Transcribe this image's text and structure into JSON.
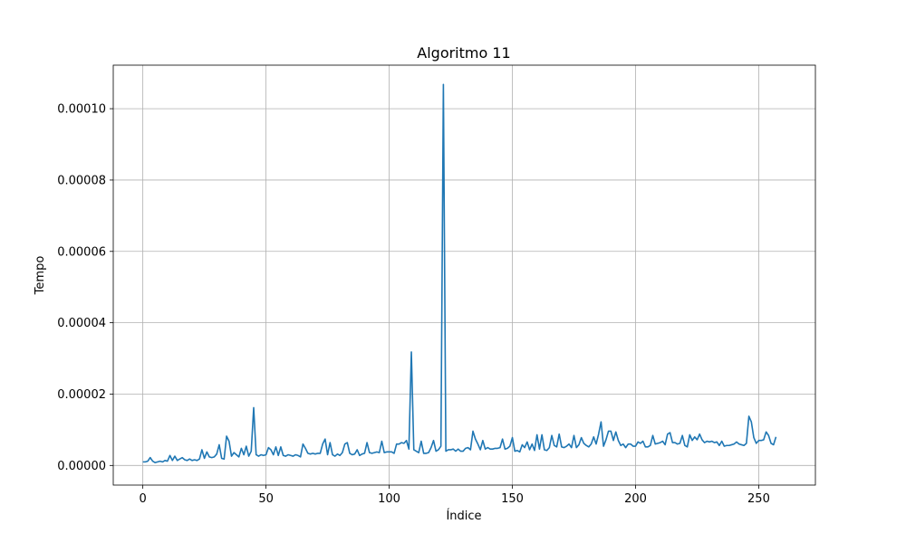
{
  "chart_data": {
    "type": "line",
    "title": "Algoritmo 11",
    "xlabel": "Índice",
    "ylabel": "Tempo",
    "xlim": [
      -12,
      273
    ],
    "ylim": [
      -5.5e-06,
      0.0001122
    ],
    "xticks": [
      0,
      50,
      100,
      150,
      200,
      250
    ],
    "xtick_labels": [
      "0",
      "50",
      "100",
      "150",
      "200",
      "250"
    ],
    "yticks": [
      0,
      2e-05,
      4e-05,
      6e-05,
      8e-05,
      0.0001
    ],
    "ytick_labels": [
      "0.00000",
      "0.00002",
      "0.00004",
      "0.00006",
      "0.00008",
      "0.00010"
    ],
    "grid": true,
    "series": [
      {
        "color": "#1f77b4",
        "x_start": 0,
        "values": [
          1e-06,
          1e-06,
          1.2e-06,
          2.2e-06,
          1.2e-06,
          8e-07,
          1e-06,
          1.2e-06,
          1e-06,
          1.4e-06,
          1.2e-06,
          2.8e-06,
          1.4e-06,
          2.6e-06,
          1.4e-06,
          1.8e-06,
          2.2e-06,
          1.6e-06,
          1.4e-06,
          1.8e-06,
          1.4e-06,
          1.6e-06,
          1.4e-06,
          1.8e-06,
          4.4e-06,
          2e-06,
          3.8e-06,
          2.4e-06,
          2.2e-06,
          2.4e-06,
          3.2e-06,
          5.8e-06,
          2e-06,
          1.8e-06,
          8.2e-06,
          6.8e-06,
          2.6e-06,
          3.6e-06,
          3e-06,
          2.4e-06,
          4.8e-06,
          3e-06,
          5.4e-06,
          2.6e-06,
          4e-06,
          1.62e-05,
          3e-06,
          2.6e-06,
          3e-06,
          2.8e-06,
          3e-06,
          5e-06,
          4.4e-06,
          3e-06,
          5.2e-06,
          2.8e-06,
          5.2e-06,
          2.8e-06,
          2.6e-06,
          3e-06,
          2.8e-06,
          2.6e-06,
          3e-06,
          2.8e-06,
          2.4e-06,
          6e-06,
          4.8e-06,
          3.4e-06,
          3.2e-06,
          3.4e-06,
          3.2e-06,
          3.4e-06,
          3.4e-06,
          6e-06,
          7.4e-06,
          3e-06,
          6.4e-06,
          3e-06,
          2.6e-06,
          3.2e-06,
          2.8e-06,
          3.6e-06,
          6e-06,
          6.4e-06,
          3.4e-06,
          3e-06,
          3.2e-06,
          4.4e-06,
          2.8e-06,
          3.2e-06,
          3.4e-06,
          6.4e-06,
          3.6e-06,
          3.4e-06,
          3.6e-06,
          3.8e-06,
          3.6e-06,
          6.8e-06,
          3.6e-06,
          3.8e-06,
          3.8e-06,
          3.8e-06,
          3.4e-06,
          6e-06,
          6e-06,
          6.4e-06,
          6.2e-06,
          7e-06,
          4.6e-06,
          3.18e-05,
          4.4e-06,
          4e-06,
          3.6e-06,
          6.8e-06,
          3.4e-06,
          3.4e-06,
          3.6e-06,
          5e-06,
          7e-06,
          4e-06,
          4.4e-06,
          5.4e-06,
          0.0001068,
          4e-06,
          4.4e-06,
          4.4e-06,
          4.6e-06,
          4e-06,
          4.6e-06,
          4e-06,
          4e-06,
          4.8e-06,
          5e-06,
          4.4e-06,
          9.6e-06,
          7.4e-06,
          6e-06,
          4.4e-06,
          7e-06,
          4.6e-06,
          5e-06,
          4.6e-06,
          4.6e-06,
          4.8e-06,
          4.8e-06,
          5e-06,
          7.4e-06,
          4.6e-06,
          4.8e-06,
          5.4e-06,
          7.8e-06,
          4e-06,
          4.2e-06,
          3.8e-06,
          5.8e-06,
          5e-06,
          6.6e-06,
          4.4e-06,
          6e-06,
          4.2e-06,
          8.6e-06,
          4.6e-06,
          8.6e-06,
          4.4e-06,
          4.2e-06,
          5e-06,
          8.4e-06,
          5.6e-06,
          5.2e-06,
          8.8e-06,
          5.2e-06,
          5e-06,
          5.4e-06,
          6e-06,
          5e-06,
          8.4e-06,
          5e-06,
          5.8e-06,
          7.8e-06,
          6.2e-06,
          5.6e-06,
          5.2e-06,
          6e-06,
          8e-06,
          6e-06,
          8.8e-06,
          1.22e-05,
          5.4e-06,
          7.2e-06,
          9.6e-06,
          9.6e-06,
          7e-06,
          9.4e-06,
          7e-06,
          5.6e-06,
          6e-06,
          5e-06,
          6e-06,
          6e-06,
          5.4e-06,
          5.4e-06,
          6.6e-06,
          6.2e-06,
          6.8e-06,
          5.2e-06,
          5.2e-06,
          5.6e-06,
          8.4e-06,
          6e-06,
          6.2e-06,
          6.4e-06,
          6.8e-06,
          5.8e-06,
          8.8e-06,
          9.2e-06,
          6.4e-06,
          6.4e-06,
          6e-06,
          6.2e-06,
          8.4e-06,
          5.6e-06,
          5.2e-06,
          8.6e-06,
          7e-06,
          8e-06,
          7.2e-06,
          8.8e-06,
          7.2e-06,
          6.4e-06,
          6.8e-06,
          6.6e-06,
          6.8e-06,
          6.4e-06,
          6.6e-06,
          5.6e-06,
          6.8e-06,
          5.4e-06,
          5.6e-06,
          5.6e-06,
          5.8e-06,
          6e-06,
          6.6e-06,
          6e-06,
          5.8e-06,
          5.6e-06,
          6.2e-06,
          1.38e-05,
          1.22e-05,
          7.8e-06,
          6.2e-06,
          7e-06,
          7e-06,
          7.2e-06,
          9.4e-06,
          8.4e-06,
          6.2e-06,
          5.8e-06,
          8e-06
        ]
      }
    ]
  }
}
